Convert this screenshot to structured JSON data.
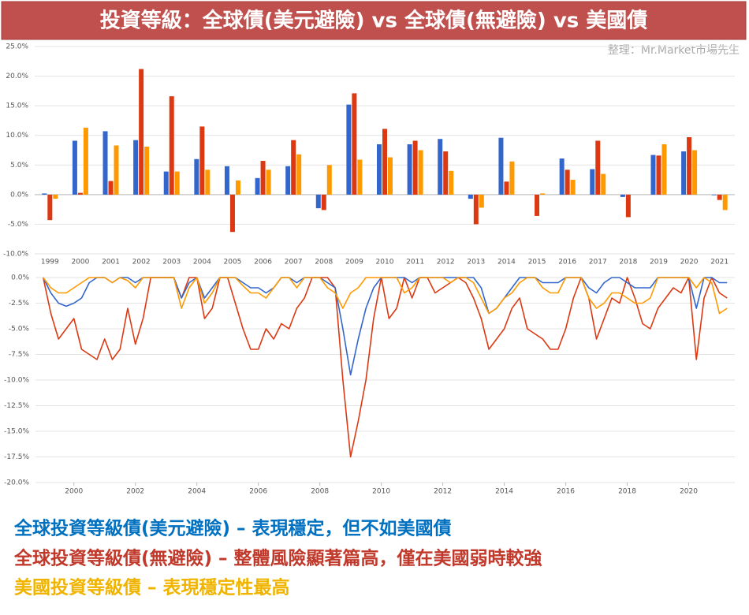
{
  "title": "投資等級：全球債(美元避險) vs 全球債(無避險) vs 美國債",
  "credit": "整理：Mr.Market市場先生",
  "notes": [
    {
      "text": "全球投資等級債(美元避險) – 表現穩定，但不如美國債",
      "color": "#0070c0"
    },
    {
      "text": "全球投資等級債(無避險) – 整體風險顯著篇高，僅在美國弱時較強",
      "color": "#c0392b"
    },
    {
      "text": "美國投資等級債 – 表現穩定性最高",
      "color": "#f0b400"
    }
  ],
  "chart_data": [
    {
      "type": "bar",
      "categories": [
        "1999",
        "2000",
        "2001",
        "2002",
        "2003",
        "2004",
        "2005",
        "2006",
        "2007",
        "2008",
        "2009",
        "2010",
        "2011",
        "2012",
        "2013",
        "2014",
        "2015",
        "2016",
        "2017",
        "2018",
        "2019",
        "2020",
        "2021"
      ],
      "series": [
        {
          "color": "#3366cc",
          "values": [
            0.2,
            9.1,
            10.7,
            9.2,
            3.9,
            6.0,
            4.8,
            2.8,
            4.8,
            -2.3,
            15.2,
            8.5,
            8.5,
            9.4,
            -0.7,
            9.6,
            0.0,
            6.1,
            4.3,
            -0.4,
            6.7,
            7.3,
            -0.1
          ]
        },
        {
          "color": "#dc3912",
          "values": [
            -4.3,
            0.3,
            2.3,
            21.2,
            16.6,
            11.5,
            -6.3,
            5.7,
            9.2,
            -2.6,
            17.1,
            11.1,
            9.1,
            7.3,
            -5.0,
            2.2,
            -3.6,
            4.2,
            9.1,
            -3.8,
            6.6,
            9.7,
            -0.9
          ]
        },
        {
          "color": "#ff9900",
          "values": [
            -0.7,
            11.3,
            8.3,
            8.1,
            3.9,
            4.2,
            2.4,
            4.2,
            6.8,
            5.0,
            5.9,
            6.3,
            7.5,
            4.0,
            -2.2,
            5.6,
            0.2,
            2.5,
            3.5,
            0.0,
            8.5,
            7.5,
            -2.6
          ]
        }
      ],
      "ylim": [
        -10,
        25
      ],
      "yticks": [
        {
          "value": -10,
          "label": "-10.0%"
        },
        {
          "value": -5,
          "label": "-5.0%"
        },
        {
          "value": 0,
          "label": "0.0%"
        },
        {
          "value": 5,
          "label": "5.0%"
        },
        {
          "value": 10,
          "label": "10.0%"
        },
        {
          "value": 15,
          "label": "15.0%"
        },
        {
          "value": 20,
          "label": "20.0%"
        },
        {
          "value": 25,
          "label": "25.0%"
        }
      ],
      "grid": true
    },
    {
      "type": "line",
      "x": [
        1999,
        1999.25,
        1999.5,
        1999.75,
        2000,
        2000.25,
        2000.5,
        2000.75,
        2001,
        2001.25,
        2001.5,
        2001.75,
        2002,
        2002.25,
        2002.5,
        2002.75,
        2003,
        2003.25,
        2003.5,
        2003.75,
        2004,
        2004.25,
        2004.5,
        2004.75,
        2005,
        2005.25,
        2005.5,
        2005.75,
        2006,
        2006.25,
        2006.5,
        2006.75,
        2007,
        2007.25,
        2007.5,
        2007.75,
        2008,
        2008.25,
        2008.5,
        2008.75,
        2009,
        2009.25,
        2009.5,
        2009.75,
        2010,
        2010.25,
        2010.5,
        2010.75,
        2011,
        2011.25,
        2011.5,
        2011.75,
        2012,
        2012.25,
        2012.5,
        2012.75,
        2013,
        2013.25,
        2013.5,
        2013.75,
        2014,
        2014.25,
        2014.5,
        2014.75,
        2015,
        2015.25,
        2015.5,
        2015.75,
        2016,
        2016.25,
        2016.5,
        2016.75,
        2017,
        2017.25,
        2017.5,
        2017.75,
        2018,
        2018.25,
        2018.5,
        2018.75,
        2019,
        2019.25,
        2019.5,
        2019.75,
        2020,
        2020.25,
        2020.5,
        2020.75,
        2021,
        2021.25
      ],
      "series": [
        {
          "color": "#dc3912",
          "values": [
            0,
            -3.5,
            -6,
            -5,
            -4,
            -7,
            -7.5,
            -8,
            -6,
            -8,
            -7,
            -3,
            -6.5,
            -4,
            0,
            0,
            0,
            0,
            -2,
            0,
            0,
            -4,
            -3,
            0,
            0,
            -2.5,
            -5,
            -7,
            -7,
            -5,
            -6,
            -4.5,
            -5,
            -3,
            -2,
            0,
            0,
            0,
            -1,
            -10,
            -17.5,
            -14,
            -10,
            -4,
            0,
            -4,
            -3,
            0,
            -2,
            0,
            0,
            -1.5,
            -1,
            -0.5,
            0,
            -0.5,
            -2,
            -4,
            -7,
            -6,
            -5,
            -3,
            -2,
            -5,
            -5.5,
            -6,
            -7,
            -7,
            -5,
            -2,
            0,
            -2,
            -6,
            -4,
            -2,
            -2.5,
            0,
            -2,
            -4.5,
            -5,
            -3,
            -2,
            -1,
            -1.5,
            0,
            -8,
            -2,
            0,
            -1.5,
            -2
          ]
        },
        {
          "color": "#3366cc",
          "values": [
            0,
            -1.5,
            -2.5,
            -2.8,
            -2.5,
            -2,
            -0.5,
            0,
            0,
            -0.5,
            0,
            0,
            -0.5,
            0,
            0,
            0,
            0,
            0,
            -2,
            -0.5,
            0,
            -2,
            -1,
            0,
            0,
            0,
            -0.5,
            -1,
            -1,
            -1.5,
            -1,
            0,
            0,
            -0.5,
            0,
            0,
            0,
            -0.5,
            -1,
            -5,
            -9.5,
            -6,
            -3,
            -1,
            0,
            0,
            0,
            0,
            -0.5,
            0,
            0,
            0,
            0,
            0,
            0,
            0,
            0,
            -1,
            -3.5,
            -3,
            -2,
            -1,
            0,
            0,
            0,
            -0.5,
            -0.5,
            -0.5,
            0,
            0,
            0,
            -1,
            -1.5,
            -0.5,
            0,
            0,
            -0.5,
            -1,
            -1,
            -1,
            0,
            0,
            0,
            0,
            0,
            -3,
            0,
            0,
            -0.5,
            -0.5
          ]
        },
        {
          "color": "#ff9900",
          "values": [
            0,
            -1,
            -1.5,
            -1.5,
            -1,
            -0.5,
            0,
            0,
            0,
            -0.5,
            0,
            -0.3,
            -1,
            0,
            0,
            0,
            0,
            0,
            -3,
            -1,
            0,
            -2.5,
            -1.5,
            0,
            0,
            0,
            -0.8,
            -1.5,
            -1.5,
            -2,
            -1,
            0,
            0,
            -1,
            0,
            0,
            0,
            -1,
            -1.5,
            -3,
            -1.5,
            -1,
            0,
            0,
            0,
            0,
            0,
            -1.5,
            -1,
            0,
            0,
            0,
            0,
            -0.5,
            0,
            0,
            -0.5,
            -2,
            -3.5,
            -3,
            -2,
            -1.5,
            -0.5,
            0,
            0,
            -1,
            -1.5,
            -1.5,
            0,
            0,
            0,
            -2,
            -3,
            -2.5,
            -1.5,
            -1.5,
            -2,
            -2.5,
            -2.5,
            -2,
            0,
            0,
            0,
            0,
            0,
            -1,
            0,
            -0.5,
            -3.5,
            -3
          ]
        }
      ],
      "xlim": [
        1998.75,
        2021.5
      ],
      "xticks": [
        2000,
        2002,
        2004,
        2006,
        2008,
        2010,
        2012,
        2014,
        2016,
        2018,
        2020
      ],
      "ylim": [
        -20,
        0
      ],
      "yticks": [
        {
          "value": -20,
          "label": "-20.0%"
        },
        {
          "value": -17.5,
          "label": "-17.5%"
        },
        {
          "value": -15,
          "label": "-15.0%"
        },
        {
          "value": -12.5,
          "label": "-12.5%"
        },
        {
          "value": -10,
          "label": "-10.0%"
        },
        {
          "value": -7.5,
          "label": "-7.5%"
        },
        {
          "value": -5,
          "label": "-5.0%"
        },
        {
          "value": -2.5,
          "label": "-2.5%"
        },
        {
          "value": 0,
          "label": "0.0%"
        }
      ],
      "grid": true
    }
  ]
}
